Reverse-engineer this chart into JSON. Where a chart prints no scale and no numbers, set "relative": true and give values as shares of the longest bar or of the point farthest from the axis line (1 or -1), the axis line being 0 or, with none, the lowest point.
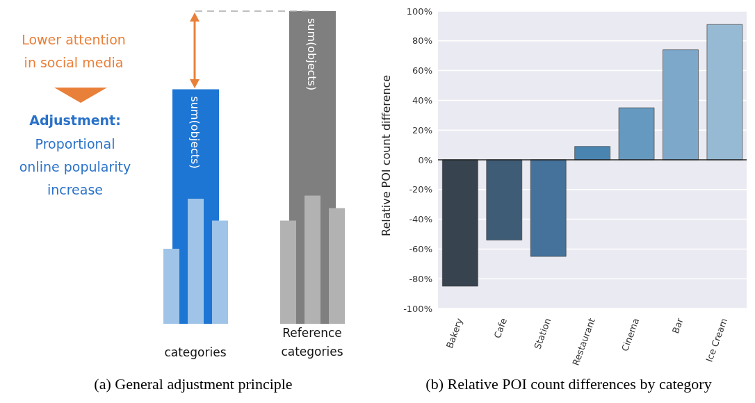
{
  "chart_data": [
    {
      "type": "bar",
      "relative": true,
      "title": "(a) General adjustment principle",
      "categories": [
        "categories",
        "Reference categories"
      ],
      "series": [
        {
          "colors": [
            "#1e76d4",
            "#7f7f7f"
          ],
          "values": [
            0.75,
            1
          ]
        },
        {
          "colors": [
            "#9fc4e8",
            "#b2b2b2"
          ],
          "values": [
            0.24,
            0.33
          ]
        },
        {
          "colors": [
            "#9fc4e8",
            "#b2b2b2"
          ],
          "values": [
            0.4,
            0.41
          ]
        },
        {
          "colors": [
            "#9fc4e8",
            "#b2b2b2"
          ],
          "values": [
            0.33,
            0.37
          ]
        }
      ],
      "ref_lines": [
        {
          "axis": "y",
          "value": 1,
          "color": "#aaaaaa",
          "line_style": "dashed"
        }
      ],
      "annotations": [
        "Lower attention in social media",
        "Adjustment:",
        "Proportional online popularity increase",
        "sum(objects)",
        "sum(objects)"
      ]
    },
    {
      "type": "bar",
      "title": "(b) Relative POI count differences by category",
      "ylabel": "Relative POI count difference",
      "categories": [
        "Bakery",
        "Cafe",
        "Station",
        "Restaurant",
        "Cinema",
        "Bar",
        "Ice Cream"
      ],
      "values": [
        -85,
        -54,
        -65,
        9,
        35,
        74,
        91
      ],
      "colors": [
        "#37444f",
        "#3e5c75",
        "#44729a",
        "#4a85b2",
        "#6699c0",
        "#7da8ca",
        "#96bad4"
      ],
      "ylim": [
        -100,
        100
      ],
      "yticks": [
        {
          "value": -100,
          "label": "-100%"
        },
        {
          "value": -80,
          "label": "-80%"
        },
        {
          "value": -60,
          "label": "-60%"
        },
        {
          "value": -40,
          "label": "-40%"
        },
        {
          "value": -20,
          "label": "-20%"
        },
        {
          "value": 0,
          "label": "0%"
        },
        {
          "value": 20,
          "label": "20%"
        },
        {
          "value": 40,
          "label": "40%"
        },
        {
          "value": 60,
          "label": "60%"
        },
        {
          "value": 80,
          "label": "80%"
        },
        {
          "value": 100,
          "label": "100%"
        }
      ],
      "grid": "y",
      "ref_lines": [
        {
          "axis": "y",
          "value": 0,
          "color": "#222222"
        }
      ]
    }
  ]
}
